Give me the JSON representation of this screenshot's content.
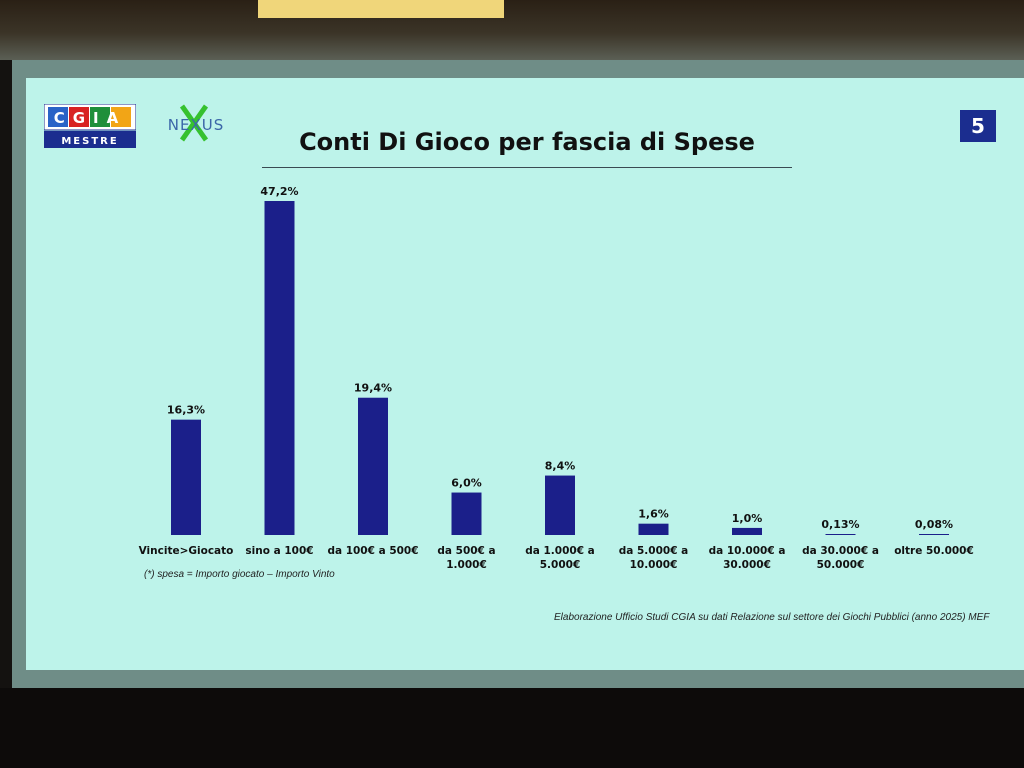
{
  "slide": {
    "title": "Conti Di Gioco per fascia di Spese",
    "page_number": "5",
    "logos": {
      "cgia_top": "CGIA",
      "cgia_bottom": "MESTRE",
      "nexus": "NEXUS"
    },
    "footnote": "(*) spesa = Importo giocato – Importo Vinto",
    "source": "Elaborazione Ufficio Studi CGIA su dati Relazione sul settore dei Giochi Pubblici (anno 2025) MEF",
    "colors": {
      "bar": "#1b1f8a",
      "background": "#bdf3ea",
      "title_rule": "#3a4a52"
    }
  },
  "chart_data": {
    "type": "bar",
    "categories": [
      [
        "Vincite>Giocato"
      ],
      [
        "sino a 100€"
      ],
      [
        "da 100€ a 500€"
      ],
      [
        "da 500€ a",
        "1.000€"
      ],
      [
        "da 1.000€ a",
        "5.000€"
      ],
      [
        "da 5.000€ a",
        "10.000€"
      ],
      [
        "da 10.000€ a",
        "30.000€"
      ],
      [
        "da 30.000€ a",
        "50.000€"
      ],
      [
        "oltre 50.000€"
      ]
    ],
    "values": [
      16.3,
      47.2,
      19.4,
      6.0,
      8.4,
      1.6,
      1.0,
      0.13,
      0.08
    ],
    "value_labels": [
      "16,3%",
      "47,2%",
      "19,4%",
      "6,0%",
      "8,4%",
      "1,6%",
      "1,0%",
      "0,13%",
      "0,08%"
    ],
    "ylim": [
      0,
      47.2
    ],
    "grid": false,
    "legend": "none"
  }
}
